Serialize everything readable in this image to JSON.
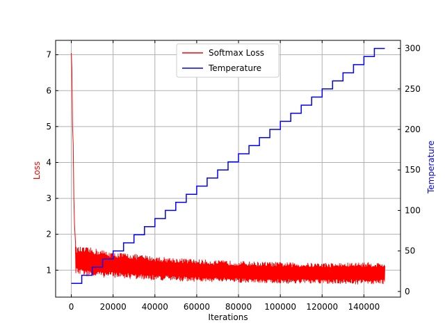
{
  "chart_data": {
    "type": "line",
    "xlabel": "Iterations",
    "ylabel_left": "Loss",
    "ylabel_right": "Temperature",
    "xlim": [
      -7500,
      157500
    ],
    "ylim_left": [
      0.25,
      7.4
    ],
    "ylim_right": [
      -7,
      310
    ],
    "xticks": [
      0,
      20000,
      40000,
      60000,
      80000,
      100000,
      120000,
      140000
    ],
    "xtick_labels": [
      "0",
      "20000",
      "40000",
      "60000",
      "80000",
      "100000",
      "120000",
      "140000"
    ],
    "yticks_left": [
      1,
      2,
      3,
      4,
      5,
      6,
      7
    ],
    "ytick_labels_left": [
      "1",
      "2",
      "3",
      "4",
      "5",
      "6",
      "7"
    ],
    "yticks_right": [
      0,
      50,
      100,
      150,
      200,
      250,
      300
    ],
    "ytick_labels_right": [
      "0",
      "50",
      "100",
      "150",
      "200",
      "250",
      "300"
    ],
    "grid": true,
    "legend_position": "upper-center",
    "colors": {
      "loss": "#ff0000",
      "temperature": "#0000ff",
      "grid": "#b0b0b0"
    },
    "series": [
      {
        "name": "Softmax Loss",
        "axis": "left",
        "color": "#ff0000",
        "points": [
          [
            0,
            7.05
          ],
          [
            300,
            6.6
          ],
          [
            600,
            5.0
          ],
          [
            900,
            4.5
          ],
          [
            1200,
            3.0
          ],
          [
            1500,
            2.3
          ],
          [
            2000,
            1.75
          ]
        ],
        "band": {
          "x": [
            2000,
            10000,
            20000,
            30000,
            40000,
            50000,
            60000,
            70000,
            80000,
            90000,
            100000,
            110000,
            120000,
            130000,
            140000,
            150000
          ],
          "upper": [
            1.65,
            1.62,
            1.5,
            1.45,
            1.38,
            1.34,
            1.3,
            1.27,
            1.25,
            1.23,
            1.22,
            1.2,
            1.2,
            1.2,
            1.22,
            1.2
          ],
          "lower": [
            0.9,
            0.8,
            0.8,
            0.75,
            0.72,
            0.7,
            0.68,
            0.67,
            0.66,
            0.65,
            0.63,
            0.63,
            0.62,
            0.62,
            0.61,
            0.62
          ]
        }
      },
      {
        "name": "Temperature",
        "axis": "right",
        "color": "#0000ff",
        "step_width": 5000,
        "steps": [
          [
            0,
            10
          ],
          [
            5000,
            20
          ],
          [
            10000,
            30
          ],
          [
            15000,
            40
          ],
          [
            20000,
            50
          ],
          [
            25000,
            60
          ],
          [
            30000,
            70
          ],
          [
            35000,
            80
          ],
          [
            40000,
            90
          ],
          [
            45000,
            100
          ],
          [
            50000,
            110
          ],
          [
            55000,
            120
          ],
          [
            60000,
            130
          ],
          [
            65000,
            140
          ],
          [
            70000,
            150
          ],
          [
            75000,
            160
          ],
          [
            80000,
            170
          ],
          [
            85000,
            180
          ],
          [
            90000,
            190
          ],
          [
            95000,
            200
          ],
          [
            100000,
            210
          ],
          [
            105000,
            220
          ],
          [
            110000,
            230
          ],
          [
            115000,
            240
          ],
          [
            120000,
            250
          ],
          [
            125000,
            260
          ],
          [
            130000,
            270
          ],
          [
            135000,
            280
          ],
          [
            140000,
            290
          ],
          [
            145000,
            300
          ]
        ],
        "x_end": 150000
      }
    ]
  }
}
